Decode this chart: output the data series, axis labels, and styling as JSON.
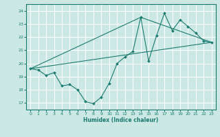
{
  "xlabel": "Humidex (Indice chaleur)",
  "bg_color": "#cce8e4",
  "grid_color": "#ffffff",
  "line_color": "#1a7a6e",
  "xlim": [
    -0.5,
    23.5
  ],
  "ylim": [
    16.5,
    24.5
  ],
  "xticks": [
    0,
    1,
    2,
    3,
    4,
    5,
    6,
    7,
    8,
    9,
    10,
    11,
    12,
    13,
    14,
    15,
    16,
    17,
    18,
    19,
    20,
    21,
    22,
    23
  ],
  "yticks": [
    17,
    18,
    19,
    20,
    21,
    22,
    23,
    24
  ],
  "line1_x": [
    0,
    1,
    2,
    3,
    4,
    5,
    6,
    7,
    8,
    9,
    10,
    11,
    12,
    13,
    14,
    15,
    16,
    17,
    18,
    19,
    20,
    21,
    22,
    23
  ],
  "line1_y": [
    19.6,
    19.5,
    19.1,
    19.3,
    18.3,
    18.4,
    18.0,
    17.1,
    16.95,
    17.45,
    18.5,
    20.0,
    20.5,
    20.9,
    23.5,
    20.2,
    22.1,
    23.8,
    22.5,
    23.3,
    22.8,
    22.3,
    21.7,
    21.6
  ],
  "line2_x": [
    0,
    23
  ],
  "line2_y": [
    19.6,
    21.6
  ],
  "line3_x": [
    0,
    14,
    23
  ],
  "line3_y": [
    19.6,
    23.5,
    21.6
  ]
}
